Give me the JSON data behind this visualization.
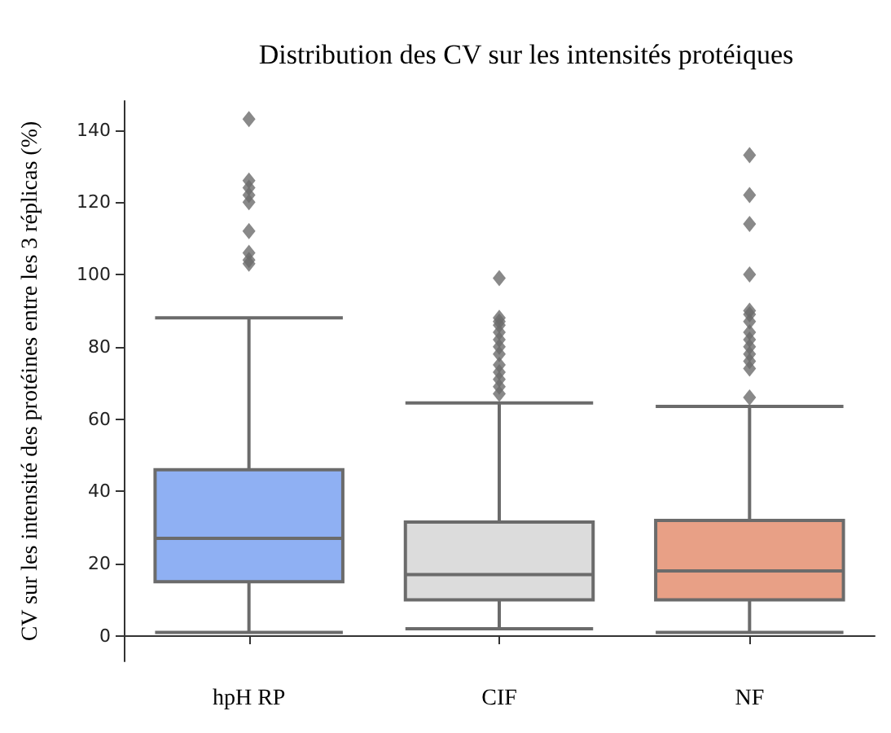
{
  "chart_data": {
    "type": "box",
    "title": "Distribution des CV sur les intensités protéiques",
    "ylabel": "CV sur les intensité des protéines entre les 3 réplicas (%)",
    "categories": [
      "hpH RP",
      "CIF",
      "NF"
    ],
    "colors": [
      "#8fb0f3",
      "#dcdcdc",
      "#e8a086"
    ],
    "boxes": [
      {
        "low": 1,
        "q1": 15,
        "median": 27,
        "q3": 46,
        "high": 88,
        "outliers": [
          143,
          126,
          124,
          122,
          120,
          112,
          106,
          104,
          103
        ]
      },
      {
        "low": 2,
        "q1": 10,
        "median": 17,
        "q3": 31.5,
        "high": 64.5,
        "outliers": [
          99,
          88,
          87,
          86,
          84,
          82,
          80,
          78,
          75,
          73,
          71,
          69,
          67
        ]
      },
      {
        "low": 1,
        "q1": 10,
        "median": 18,
        "q3": 32,
        "high": 63.5,
        "outliers": [
          133,
          122,
          114,
          100,
          90,
          89,
          87,
          84,
          82,
          80,
          78,
          76,
          74,
          66
        ]
      }
    ],
    "ylim": [
      -7,
      148
    ],
    "yticks": [
      0,
      20,
      40,
      60,
      80,
      100,
      120,
      140
    ],
    "grid": false,
    "marker": "diamond"
  }
}
